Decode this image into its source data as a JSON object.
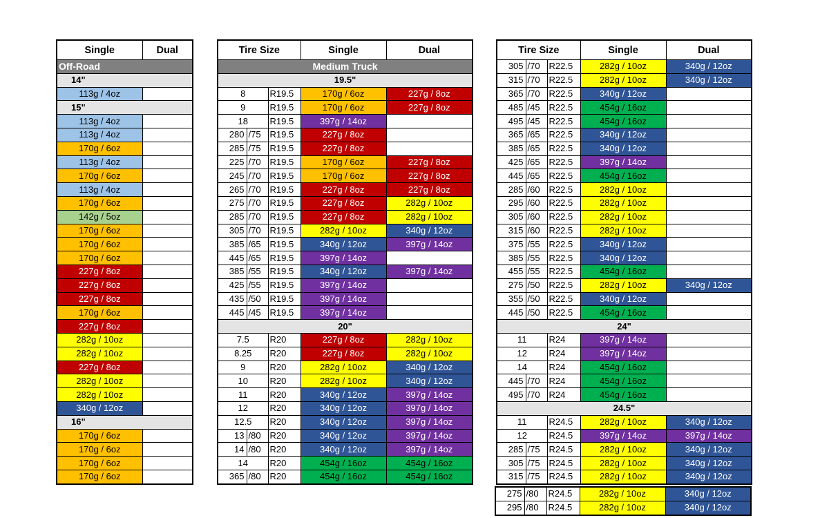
{
  "colors": {
    "113g / 4oz": "#9dc3e6",
    "142g / 5oz": "#a9d18e",
    "170g / 6oz": "#ffc000",
    "227g / 8oz": "#c00000",
    "282g / 10oz": "#ffff00",
    "340g / 12oz": "#2f5597",
    "397g / 14oz": "#7030a0",
    "454g / 16oz": "#00b050"
  },
  "tables": {
    "offroad": {
      "headers": [
        "Single",
        "Dual"
      ],
      "rows": [
        {
          "type": "category",
          "label": "Off-Road"
        },
        {
          "type": "section",
          "label": "14\""
        },
        {
          "single": "113g / 4oz",
          "dual": ""
        },
        {
          "type": "section",
          "label": "15\""
        },
        {
          "single": "113g / 4oz",
          "dual": ""
        },
        {
          "single": "113g / 4oz",
          "dual": ""
        },
        {
          "single": "170g / 6oz",
          "dual": ""
        },
        {
          "single": "113g / 4oz",
          "dual": ""
        },
        {
          "single": "170g / 6oz",
          "dual": ""
        },
        {
          "single": "113g / 4oz",
          "dual": ""
        },
        {
          "single": "170g / 6oz",
          "dual": ""
        },
        {
          "single": "142g / 5oz",
          "dual": ""
        },
        {
          "single": "170g / 6oz",
          "dual": ""
        },
        {
          "single": "170g / 6oz",
          "dual": ""
        },
        {
          "single": "170g / 6oz",
          "dual": ""
        },
        {
          "single": "227g / 8oz",
          "dual": ""
        },
        {
          "single": "227g / 8oz",
          "dual": ""
        },
        {
          "single": "227g / 8oz",
          "dual": ""
        },
        {
          "single": "170g / 6oz",
          "dual": ""
        },
        {
          "single": "227g / 8oz",
          "dual": ""
        },
        {
          "single": "282g / 10oz",
          "dual": ""
        },
        {
          "single": "282g / 10oz",
          "dual": ""
        },
        {
          "single": "227g / 8oz",
          "dual": ""
        },
        {
          "single": "282g / 10oz",
          "dual": ""
        },
        {
          "single": "282g / 10oz",
          "dual": ""
        },
        {
          "single": "340g / 12oz",
          "dual": ""
        },
        {
          "type": "section",
          "label": "16\""
        },
        {
          "single": "170g / 6oz",
          "dual": ""
        },
        {
          "single": "170g / 6oz",
          "dual": ""
        },
        {
          "single": "170g / 6oz",
          "dual": ""
        },
        {
          "single": "170g / 6oz",
          "dual": ""
        }
      ]
    },
    "medium": {
      "headers": [
        "Tire Size",
        "Single",
        "Dual"
      ],
      "rows": [
        {
          "type": "category",
          "label": "Medium Truck"
        },
        {
          "type": "section",
          "label": "19.5\""
        },
        {
          "w": "8",
          "r": "",
          "rim": "R19.5",
          "single": "170g / 6oz",
          "dual": "227g / 8oz"
        },
        {
          "w": "9",
          "r": "",
          "rim": "R19.5",
          "single": "170g / 6oz",
          "dual": "227g / 8oz"
        },
        {
          "w": "18",
          "r": "",
          "rim": "R19.5",
          "single": "397g / 14oz",
          "dual": ""
        },
        {
          "w": "280",
          "r": "/75",
          "rim": "R19.5",
          "single": "227g / 8oz",
          "dual": ""
        },
        {
          "w": "285",
          "r": "/75",
          "rim": "R19.5",
          "single": "227g / 8oz",
          "dual": ""
        },
        {
          "w": "225",
          "r": "/70",
          "rim": "R19.5",
          "single": "170g / 6oz",
          "dual": "227g / 8oz"
        },
        {
          "w": "245",
          "r": "/70",
          "rim": "R19.5",
          "single": "170g / 6oz",
          "dual": "227g / 8oz"
        },
        {
          "w": "265",
          "r": "/70",
          "rim": "R19.5",
          "single": "227g / 8oz",
          "dual": "227g / 8oz"
        },
        {
          "w": "275",
          "r": "/70",
          "rim": "R19.5",
          "single": "227g / 8oz",
          "dual": "282g / 10oz"
        },
        {
          "w": "285",
          "r": "/70",
          "rim": "R19.5",
          "single": "227g / 8oz",
          "dual": "282g / 10oz"
        },
        {
          "w": "305",
          "r": "/70",
          "rim": "R19.5",
          "single": "282g / 10oz",
          "dual": "340g / 12oz"
        },
        {
          "w": "385",
          "r": "/65",
          "rim": "R19.5",
          "single": "340g / 12oz",
          "dual": "397g / 14oz"
        },
        {
          "w": "445",
          "r": "/65",
          "rim": "R19.5",
          "single": "397g / 14oz",
          "dual": ""
        },
        {
          "w": "385",
          "r": "/55",
          "rim": "R19.5",
          "single": "340g / 12oz",
          "dual": "397g / 14oz"
        },
        {
          "w": "425",
          "r": "/55",
          "rim": "R19.5",
          "single": "397g / 14oz",
          "dual": ""
        },
        {
          "w": "435",
          "r": "/50",
          "rim": "R19.5",
          "single": "397g / 14oz",
          "dual": ""
        },
        {
          "w": "445",
          "r": "/45",
          "rim": "R19.5",
          "single": "397g / 14oz",
          "dual": ""
        },
        {
          "type": "section",
          "label": "20\""
        },
        {
          "w": "7.5",
          "r": "",
          "rim": "R20",
          "single": "227g / 8oz",
          "dual": "282g / 10oz"
        },
        {
          "w": "8.25",
          "r": "",
          "rim": "R20",
          "single": "227g / 8oz",
          "dual": "282g / 10oz"
        },
        {
          "w": "9",
          "r": "",
          "rim": "R20",
          "single": "282g / 10oz",
          "dual": "340g / 12oz"
        },
        {
          "w": "10",
          "r": "",
          "rim": "R20",
          "single": "282g / 10oz",
          "dual": "340g / 12oz"
        },
        {
          "w": "11",
          "r": "",
          "rim": "R20",
          "single": "340g / 12oz",
          "dual": "397g / 14oz"
        },
        {
          "w": "12",
          "r": "",
          "rim": "R20",
          "single": "340g / 12oz",
          "dual": "397g / 14oz"
        },
        {
          "w": "12.5",
          "r": "",
          "rim": "R20",
          "single": "340g / 12oz",
          "dual": "397g / 14oz"
        },
        {
          "w": "13",
          "r": "/80",
          "rim": "R20",
          "single": "340g / 12oz",
          "dual": "397g / 14oz"
        },
        {
          "w": "14",
          "r": "/80",
          "rim": "R20",
          "single": "340g / 12oz",
          "dual": "397g / 14oz"
        },
        {
          "w": "14",
          "r": "",
          "rim": "R20",
          "single": "454g / 16oz",
          "dual": "454g / 16oz"
        },
        {
          "w": "365",
          "r": "/80",
          "rim": "R20",
          "single": "454g / 16oz",
          "dual": "454g / 16oz"
        }
      ]
    },
    "heavy": {
      "headers": [
        "Tire Size",
        "Single",
        "Dual"
      ],
      "rows": [
        {
          "w": "305",
          "r": "/70",
          "rim": "R22.5",
          "single": "282g / 10oz",
          "dual": "340g / 12oz"
        },
        {
          "w": "315",
          "r": "/70",
          "rim": "R22.5",
          "single": "282g / 10oz",
          "dual": "340g / 12oz"
        },
        {
          "w": "365",
          "r": "/70",
          "rim": "R22.5",
          "single": "340g / 12oz",
          "dual": ""
        },
        {
          "w": "485",
          "r": "/45",
          "rim": "R22.5",
          "single": "454g / 16oz",
          "dual": ""
        },
        {
          "w": "495",
          "r": "/45",
          "rim": "R22.5",
          "single": "454g / 16oz",
          "dual": ""
        },
        {
          "w": "365",
          "r": "/65",
          "rim": "R22.5",
          "single": "340g / 12oz",
          "dual": ""
        },
        {
          "w": "385",
          "r": "/65",
          "rim": "R22.5",
          "single": "340g / 12oz",
          "dual": ""
        },
        {
          "w": "425",
          "r": "/65",
          "rim": "R22.5",
          "single": "397g / 14oz",
          "dual": ""
        },
        {
          "w": "445",
          "r": "/65",
          "rim": "R22.5",
          "single": "454g / 16oz",
          "dual": ""
        },
        {
          "w": "285",
          "r": "/60",
          "rim": "R22.5",
          "single": "282g / 10oz",
          "dual": ""
        },
        {
          "w": "295",
          "r": "/60",
          "rim": "R22.5",
          "single": "282g / 10oz",
          "dual": ""
        },
        {
          "w": "305",
          "r": "/60",
          "rim": "R22.5",
          "single": "282g / 10oz",
          "dual": ""
        },
        {
          "w": "315",
          "r": "/60",
          "rim": "R22.5",
          "single": "282g / 10oz",
          "dual": ""
        },
        {
          "w": "375",
          "r": "/55",
          "rim": "R22.5",
          "single": "340g / 12oz",
          "dual": ""
        },
        {
          "w": "385",
          "r": "/55",
          "rim": "R22.5",
          "single": "340g / 12oz",
          "dual": ""
        },
        {
          "w": "455",
          "r": "/55",
          "rim": "R22.5",
          "single": "454g / 16oz",
          "dual": ""
        },
        {
          "w": "275",
          "r": "/50",
          "rim": "R22.5",
          "single": "282g / 10oz",
          "dual": "340g / 12oz"
        },
        {
          "w": "355",
          "r": "/50",
          "rim": "R22.5",
          "single": "340g / 12oz",
          "dual": ""
        },
        {
          "w": "445",
          "r": "/50",
          "rim": "R22.5",
          "single": "454g / 16oz",
          "dual": ""
        },
        {
          "type": "section",
          "label": "24\""
        },
        {
          "w": "11",
          "r": "",
          "rim": "R24",
          "single": "397g / 14oz",
          "dual": ""
        },
        {
          "w": "12",
          "r": "",
          "rim": "R24",
          "single": "397g / 14oz",
          "dual": ""
        },
        {
          "w": "14",
          "r": "",
          "rim": "R24",
          "single": "454g / 16oz",
          "dual": ""
        },
        {
          "w": "445",
          "r": "/70",
          "rim": "R24",
          "single": "454g / 16oz",
          "dual": ""
        },
        {
          "w": "495",
          "r": "/70",
          "rim": "R24",
          "single": "454g / 16oz",
          "dual": ""
        },
        {
          "type": "section",
          "label": "24.5\""
        },
        {
          "w": "11",
          "r": "",
          "rim": "R24.5",
          "single": "282g / 10oz",
          "dual": "340g / 12oz"
        },
        {
          "w": "12",
          "r": "",
          "rim": "R24.5",
          "single": "397g / 14oz",
          "dual": "397g / 14oz"
        },
        {
          "w": "285",
          "r": "/75",
          "rim": "R24.5",
          "single": "282g / 10oz",
          "dual": "340g / 12oz"
        },
        {
          "w": "305",
          "r": "/75",
          "rim": "R24.5",
          "single": "282g / 10oz",
          "dual": "340g / 12oz"
        },
        {
          "w": "315",
          "r": "/75",
          "rim": "R24.5",
          "single": "282g / 10oz",
          "dual": "340g / 12oz"
        }
      ]
    },
    "extra": {
      "rows": [
        {
          "w": "275",
          "r": "/80",
          "rim": "R24.5",
          "single": "282g / 10oz",
          "dual": "340g / 12oz"
        },
        {
          "w": "295",
          "r": "/80",
          "rim": "R24.5",
          "single": "282g / 10oz",
          "dual": "340g / 12oz"
        }
      ]
    }
  }
}
